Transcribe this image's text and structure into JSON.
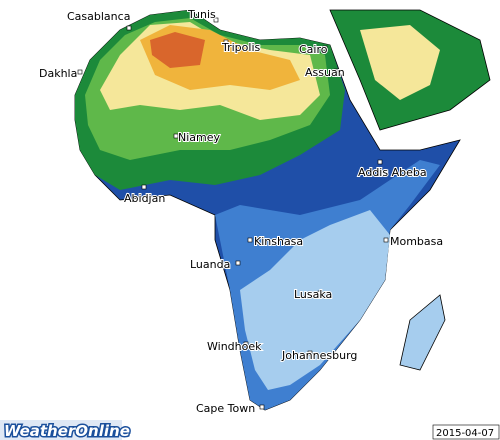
{
  "cities": [
    "Casablanca",
    "Tunis",
    "Tripolis",
    "Cairo",
    "Assuan",
    "Dakhla",
    "Niamey",
    "Addis Abeba",
    "Abidjan",
    "Kinshasa",
    "Mombasa",
    "Luanda",
    "Lusaka",
    "Windhoek",
    "Johannesburg",
    "Cape Town"
  ],
  "brand": "WeatherOnline",
  "date": "2015-04-07"
}
